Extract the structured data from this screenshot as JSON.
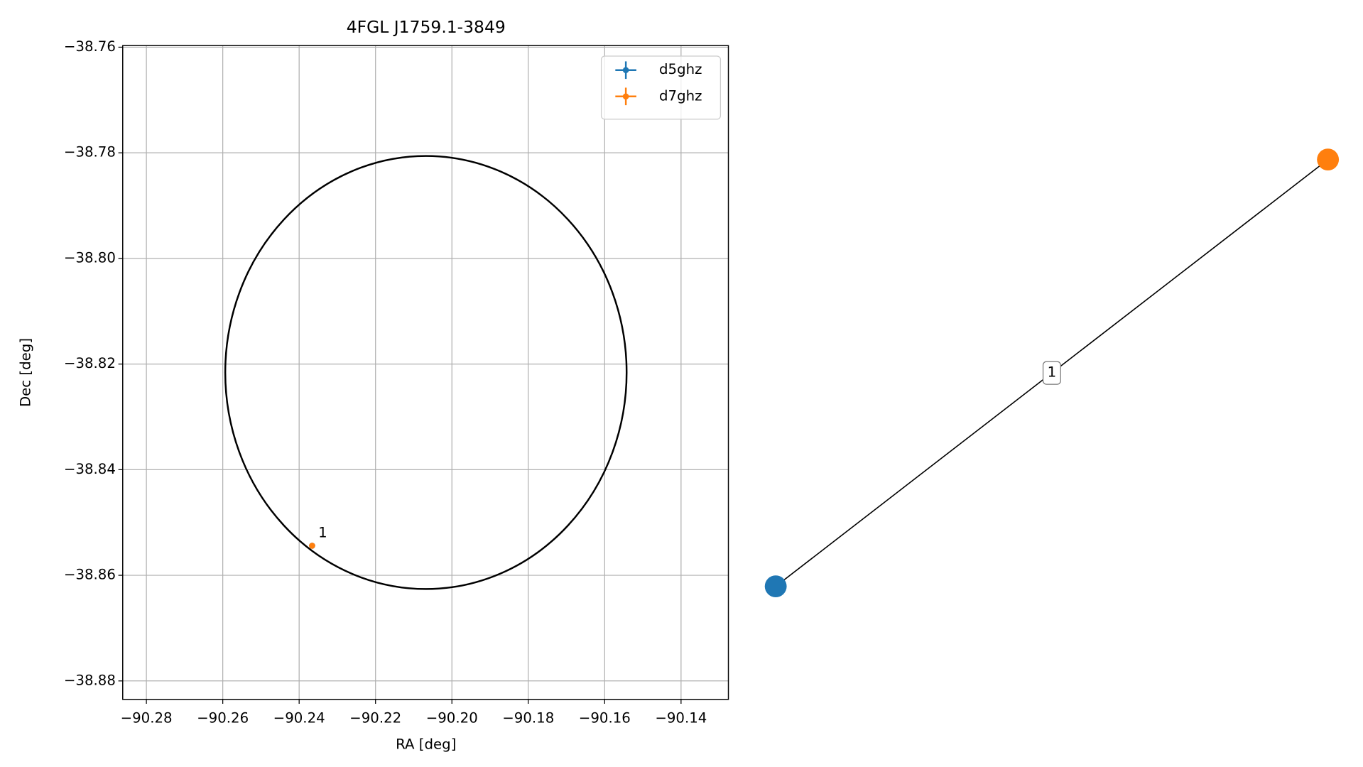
{
  "chart_data": [
    {
      "type": "scatter",
      "title": "4FGL J1759.1-3849",
      "x_label": "RA [deg]",
      "y_label": "Dec [deg]",
      "xlim": [
        -90.2862,
        -90.1276
      ],
      "ylim": [
        -38.8835,
        -38.7597
      ],
      "xticks": [
        {
          "value": -90.28,
          "label": "−90.28"
        },
        {
          "value": -90.26,
          "label": "−90.26"
        },
        {
          "value": -90.24,
          "label": "−90.24"
        },
        {
          "value": -90.22,
          "label": "−90.22"
        },
        {
          "value": -90.2,
          "label": "−90.20"
        },
        {
          "value": -90.18,
          "label": "−90.18"
        },
        {
          "value": -90.16,
          "label": "−90.16"
        },
        {
          "value": -90.14,
          "label": "−90.14"
        }
      ],
      "yticks": [
        {
          "value": -38.88,
          "label": "−38.88"
        },
        {
          "value": -38.86,
          "label": "−38.86"
        },
        {
          "value": -38.84,
          "label": "−38.84"
        },
        {
          "value": -38.82,
          "label": "−38.82"
        },
        {
          "value": -38.8,
          "label": "−38.80"
        },
        {
          "value": -38.78,
          "label": "−38.78"
        },
        {
          "value": -38.76,
          "label": "−38.76"
        }
      ],
      "grid": true,
      "legend": "upper right",
      "ellipse": {
        "center": [
          -90.2068,
          -38.8216
        ],
        "width": 0.1051,
        "height": 0.082,
        "color": "#000000"
      },
      "series": [
        {
          "name": "d5ghz",
          "color": "#1f77b4",
          "x": [
            -90.2366
          ],
          "values": [
            -38.8544
          ]
        },
        {
          "name": "d7ghz",
          "color": "#ff7f0e",
          "x": [
            -90.2366
          ],
          "values": [
            -38.8544
          ],
          "point_labels": [
            "1"
          ]
        }
      ]
    },
    {
      "type": "network",
      "nodes": [
        {
          "color": "#1f77b4"
        },
        {
          "color": "#ff7f0e"
        }
      ],
      "edges": [
        {
          "source": 0,
          "target": 1,
          "label": "1"
        }
      ]
    }
  ]
}
